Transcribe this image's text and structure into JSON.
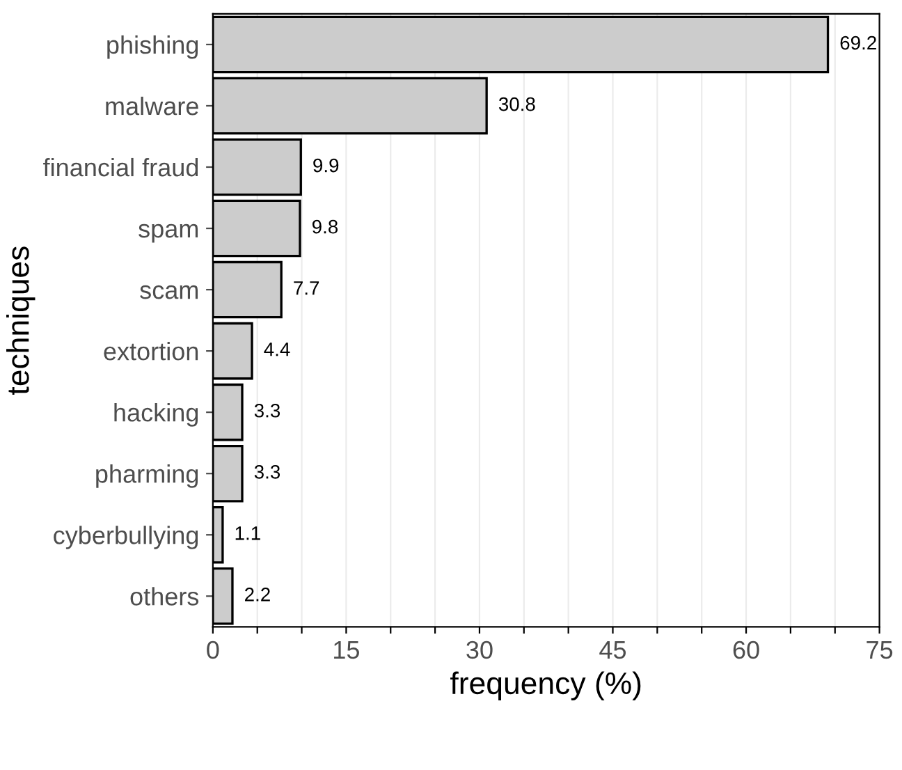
{
  "chart_data": {
    "type": "bar",
    "orientation": "horizontal",
    "xlabel": "frequency (%)",
    "ylabel": "techniques",
    "categories": [
      "phishing",
      "malware",
      "financial fraud",
      "spam",
      "scam",
      "extortion",
      "hacking",
      "pharming",
      "cyberbullying",
      "others"
    ],
    "values": [
      69.2,
      30.8,
      9.9,
      9.8,
      7.7,
      4.4,
      3.3,
      3.3,
      1.1,
      2.2
    ],
    "color": "#cccccc",
    "data_labels": true,
    "grid": "x",
    "legend": false,
    "xlim": [
      0,
      75
    ],
    "xticks": [
      0,
      {
        "value": 5,
        "label": null
      },
      {
        "value": 10,
        "label": null
      },
      15,
      {
        "value": 20,
        "label": null
      },
      {
        "value": 25,
        "label": null
      },
      30,
      {
        "value": 35,
        "label": null
      },
      {
        "value": 40,
        "label": null
      },
      45,
      {
        "value": 50,
        "label": null
      },
      {
        "value": 55,
        "label": null
      },
      60,
      {
        "value": 65,
        "label": null
      },
      {
        "value": 70,
        "label": null
      },
      75
    ]
  }
}
